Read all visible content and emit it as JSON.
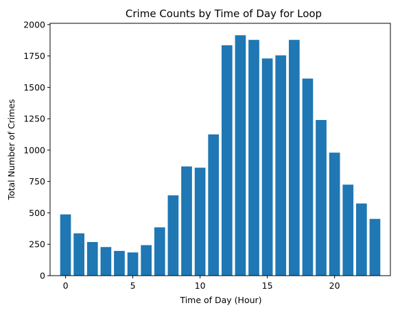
{
  "chart_data": {
    "type": "bar",
    "title": "Crime Counts by Time of Day for Loop",
    "xlabel": "Time of Day (Hour)",
    "ylabel": "Total Number of Crimes",
    "x": [
      0,
      1,
      2,
      3,
      4,
      5,
      6,
      7,
      8,
      9,
      10,
      11,
      12,
      13,
      14,
      15,
      16,
      17,
      18,
      19,
      20,
      21,
      22,
      23
    ],
    "values": [
      488,
      337,
      268,
      228,
      197,
      185,
      243,
      385,
      640,
      870,
      860,
      1125,
      1835,
      1915,
      1878,
      1730,
      1755,
      1878,
      1570,
      1240,
      980,
      725,
      575,
      452
    ],
    "xlim": [
      -1.15,
      24.15
    ],
    "ylim": [
      0,
      2010
    ],
    "xticks": [
      0,
      5,
      10,
      15,
      20
    ],
    "yticks": [
      0,
      250,
      500,
      750,
      1000,
      1250,
      1500,
      1750,
      2000
    ],
    "bar_color": "#1f77b4",
    "grid": false,
    "legend": "none"
  }
}
